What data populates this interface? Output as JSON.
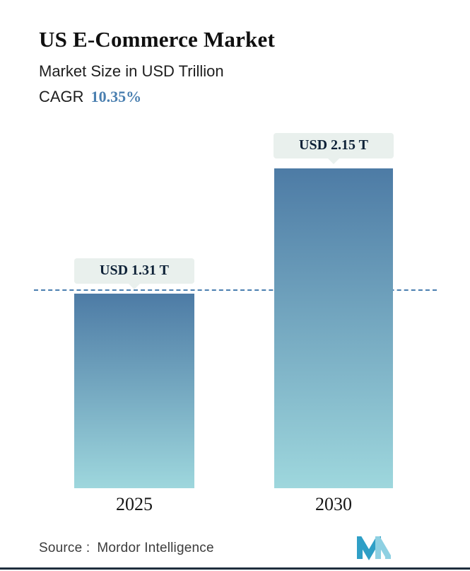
{
  "header": {
    "title": "US E-Commerce Market",
    "subtitle": "Market Size in USD Trillion",
    "cagr_label": "CAGR",
    "cagr_value": "10.35%"
  },
  "chart_data": {
    "type": "bar",
    "title": "US E-Commerce Market",
    "subtitle": "Market Size in USD Trillion",
    "unit": "USD Trillion",
    "categories": [
      "2025",
      "2030"
    ],
    "values": [
      1.31,
      2.15
    ],
    "value_labels": [
      "USD 1.31 T",
      "USD 2.15 T"
    ],
    "cagr_percent": "10.35%",
    "reference_line_value": 1.31,
    "ylim": [
      0,
      2.4
    ],
    "grid": "off",
    "legend": "none",
    "bar_gradient_top": "#4d7ba5",
    "bar_gradient_bottom": "#9ed7dd",
    "dashed_line_color": "#4a7fb0",
    "label_box_bg": "#e9f0ed"
  },
  "footer": {
    "source_label": "Source :",
    "source_value": "Mordor Intelligence",
    "logo_name": "mordor-intelligence-logo"
  },
  "accent_color": "#4a7fb0"
}
